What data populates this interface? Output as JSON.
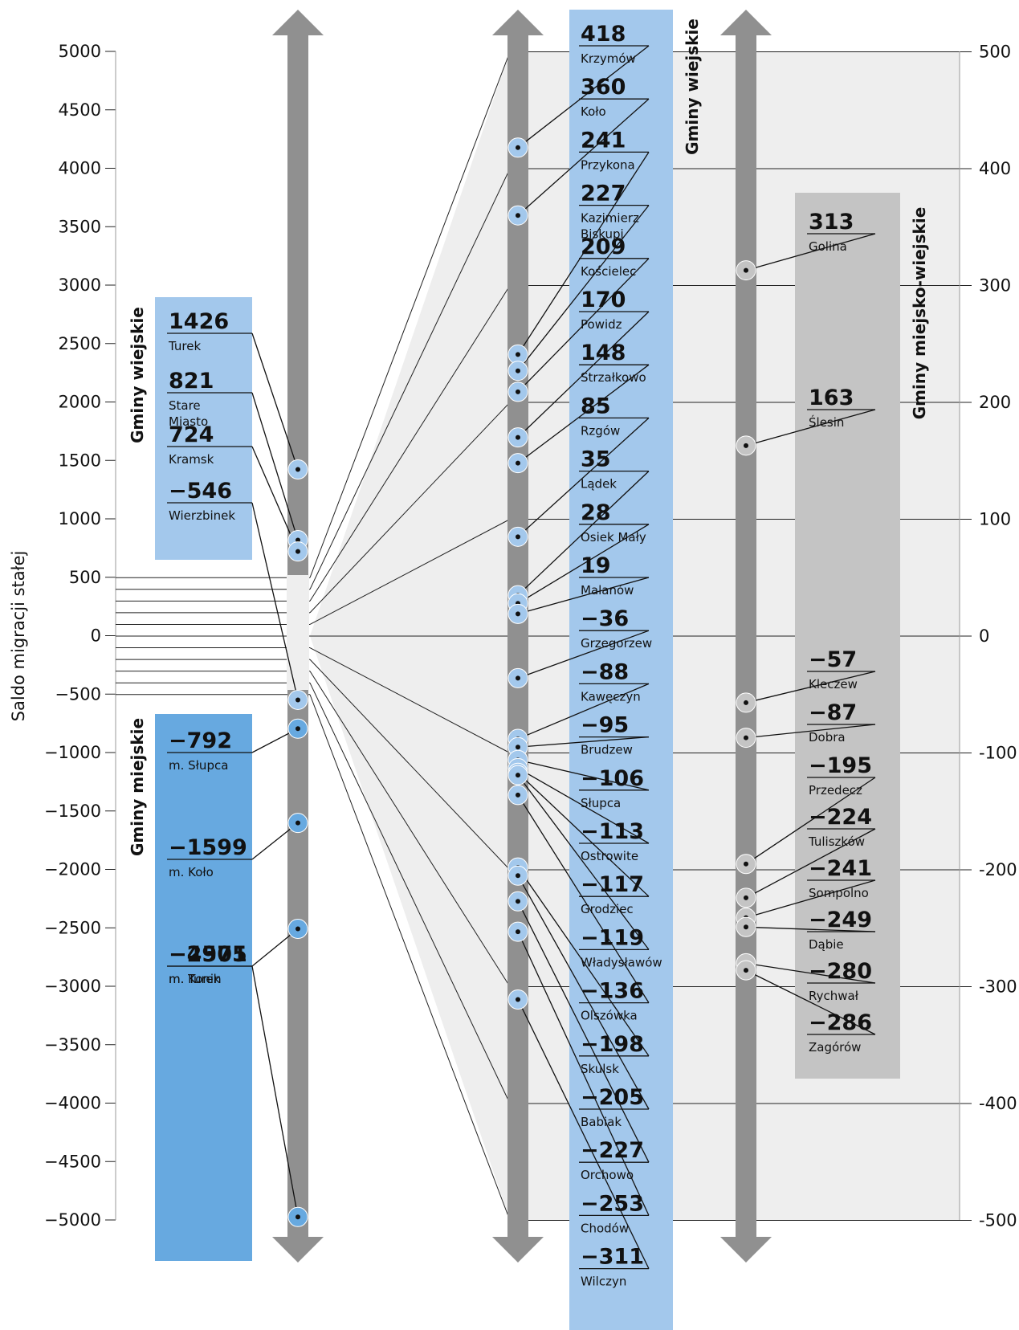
{
  "chart_data": {
    "type": "scatter",
    "ylabel": "Saldo migracji stałej",
    "left_axis": {
      "ylim": [
        -5000,
        5000
      ],
      "ticks": [
        "5000",
        "4500",
        "4000",
        "3500",
        "3000",
        "2500",
        "2000",
        "1500",
        "1000",
        "500",
        "0",
        "−500",
        "−1000",
        "−1500",
        "−2000",
        "−2500",
        "−3000",
        "−3500",
        "−4000",
        "−4500",
        "−5000"
      ]
    },
    "right_axis": {
      "ylim": [
        -500,
        500
      ],
      "ticks": [
        "500",
        "400",
        "300",
        "200",
        "100",
        "0",
        "-100",
        "-200",
        "-300",
        "-400",
        "-500"
      ]
    },
    "groups": [
      {
        "title": "Gminy wiejskie",
        "color": "#a3c8ec",
        "points": [
          {
            "name": "Turek",
            "value": 1426,
            "label": "1426"
          },
          {
            "name": "Stare Miasto",
            "value": 821,
            "label": "821"
          },
          {
            "name": "Kramsk",
            "value": 724,
            "label": "724"
          },
          {
            "name": "Wierzbinek",
            "value": -546,
            "label": "−546"
          }
        ]
      },
      {
        "title": "Gminy miejskie",
        "color": "#67a9e0",
        "points": [
          {
            "name": "m. Słupca",
            "value": -792,
            "label": "−792"
          },
          {
            "name": "m. Koło",
            "value": -1599,
            "label": "−1599"
          },
          {
            "name": "m. Turek",
            "value": -2505,
            "label": "−2505"
          },
          {
            "name": "m. Konin",
            "value": -4971,
            "label": "−4971"
          }
        ]
      },
      {
        "title": "Gminy wiejskie",
        "color": "#a3c8ec",
        "points": [
          {
            "name": "Krzymów",
            "value": 418,
            "label": "418"
          },
          {
            "name": "Koło",
            "value": 360,
            "label": "360"
          },
          {
            "name": "Przykona",
            "value": 241,
            "label": "241"
          },
          {
            "name": "Kazimierz Biskupi",
            "value": 227,
            "label": "227"
          },
          {
            "name": "Kościelec",
            "value": 209,
            "label": "209"
          },
          {
            "name": "Powidz",
            "value": 170,
            "label": "170"
          },
          {
            "name": "Strzałkowo",
            "value": 148,
            "label": "148"
          },
          {
            "name": "Rzgów",
            "value": 85,
            "label": "85"
          },
          {
            "name": "Lądek",
            "value": 35,
            "label": "35"
          },
          {
            "name": "Osiek Mały",
            "value": 28,
            "label": "28"
          },
          {
            "name": "Malanów",
            "value": 19,
            "label": "19"
          },
          {
            "name": "Grzegorzew",
            "value": -36,
            "label": "−36"
          },
          {
            "name": "Kawęczyn",
            "value": -88,
            "label": "−88"
          },
          {
            "name": "Brudzew",
            "value": -95,
            "label": "−95"
          },
          {
            "name": "Słupca",
            "value": -106,
            "label": "−106"
          },
          {
            "name": "Ostrowite",
            "value": -113,
            "label": "−113"
          },
          {
            "name": "Grodziec",
            "value": -117,
            "label": "−117"
          },
          {
            "name": "Władysławów",
            "value": -119,
            "label": "−119"
          },
          {
            "name": "Olszówka",
            "value": -136,
            "label": "−136"
          },
          {
            "name": "Skulsk",
            "value": -198,
            "label": "−198"
          },
          {
            "name": "Babiak",
            "value": -205,
            "label": "−205"
          },
          {
            "name": "Orchowo",
            "value": -227,
            "label": "−227"
          },
          {
            "name": "Chodów",
            "value": -253,
            "label": "−253"
          },
          {
            "name": "Wilczyn",
            "value": -311,
            "label": "−311"
          }
        ]
      },
      {
        "title": "Gminy miejsko-wiejskie",
        "color": "#c4c4c4",
        "points": [
          {
            "name": "Golina",
            "value": 313,
            "label": "313"
          },
          {
            "name": "Ślesin",
            "value": 163,
            "label": "163"
          },
          {
            "name": "Kleczew",
            "value": -57,
            "label": "−57"
          },
          {
            "name": "Dobra",
            "value": -87,
            "label": "−87"
          },
          {
            "name": "Przedecz",
            "value": -195,
            "label": "−195"
          },
          {
            "name": "Tuliszków",
            "value": -224,
            "label": "−224"
          },
          {
            "name": "Sompolno",
            "value": -241,
            "label": "−241"
          },
          {
            "name": "Dąbie",
            "value": -249,
            "label": "−249"
          },
          {
            "name": "Rychwał",
            "value": -280,
            "label": "−280"
          },
          {
            "name": "Zagórów",
            "value": -286,
            "label": "−286"
          }
        ]
      }
    ]
  }
}
